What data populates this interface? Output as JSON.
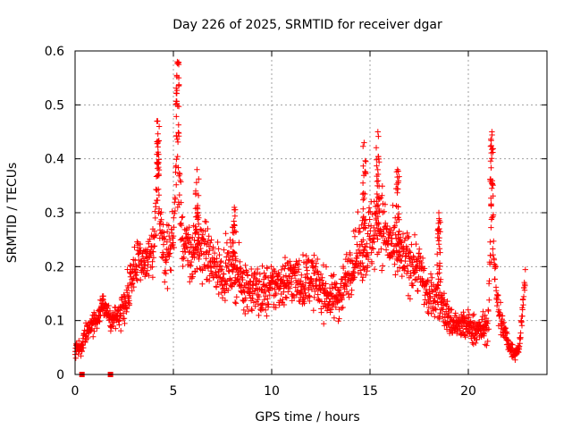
{
  "chart_data": {
    "type": "scatter",
    "title": "Day 226 of 2025, SRMTID for receiver dgar",
    "xlabel": "GPS time / hours",
    "ylabel": "SRMTID / TECUs",
    "xlim": [
      0,
      24
    ],
    "ylim": [
      0,
      0.6
    ],
    "xticks": [
      0,
      5,
      10,
      15,
      20
    ],
    "xtick_labels": [
      "0",
      "5",
      "10",
      "15",
      "20"
    ],
    "yticks": [
      0,
      0.1,
      0.2,
      0.3,
      0.4,
      0.5,
      0.6
    ],
    "ytick_labels": [
      "0",
      "0.1",
      "0.2",
      "0.3",
      "0.4",
      "0.5",
      "0.6"
    ],
    "grid": true,
    "marker": "plus",
    "series_color": "#ff0000",
    "outlier_markers": {
      "marker": "square",
      "x": [
        0.35,
        1.8
      ],
      "y": [
        0,
        0
      ]
    },
    "trend": {
      "x": [
        0.0,
        0.3,
        0.6,
        1.0,
        1.4,
        1.8,
        2.2,
        2.6,
        3.0,
        3.5,
        4.0,
        4.2,
        4.5,
        5.0,
        5.2,
        5.5,
        6.0,
        6.5,
        7.0,
        7.5,
        8.0,
        8.5,
        9.0,
        9.5,
        10.0,
        10.5,
        11.0,
        11.5,
        12.0,
        12.5,
        13.0,
        13.5,
        14.0,
        14.5,
        15.0,
        15.5,
        16.0,
        16.5,
        17.0,
        17.5,
        18.0,
        18.5,
        19.0,
        19.5,
        20.0,
        20.5,
        21.0,
        21.2,
        21.5,
        22.0,
        22.3,
        22.6,
        22.9
      ],
      "y": [
        0.05,
        0.05,
        0.08,
        0.1,
        0.13,
        0.1,
        0.11,
        0.14,
        0.2,
        0.21,
        0.22,
        0.36,
        0.22,
        0.25,
        0.43,
        0.24,
        0.22,
        0.24,
        0.2,
        0.19,
        0.2,
        0.17,
        0.16,
        0.15,
        0.16,
        0.17,
        0.18,
        0.17,
        0.18,
        0.16,
        0.14,
        0.15,
        0.2,
        0.23,
        0.25,
        0.29,
        0.24,
        0.22,
        0.21,
        0.2,
        0.14,
        0.15,
        0.1,
        0.09,
        0.09,
        0.08,
        0.09,
        0.3,
        0.12,
        0.06,
        0.04,
        0.05,
        0.19
      ],
      "spread": [
        0.015,
        0.015,
        0.02,
        0.025,
        0.025,
        0.02,
        0.03,
        0.04,
        0.05,
        0.05,
        0.05,
        0.08,
        0.05,
        0.06,
        0.12,
        0.06,
        0.06,
        0.05,
        0.06,
        0.05,
        0.05,
        0.05,
        0.05,
        0.05,
        0.05,
        0.05,
        0.05,
        0.05,
        0.05,
        0.05,
        0.04,
        0.05,
        0.05,
        0.06,
        0.08,
        0.08,
        0.06,
        0.05,
        0.06,
        0.05,
        0.04,
        0.05,
        0.03,
        0.03,
        0.03,
        0.03,
        0.03,
        0.1,
        0.04,
        0.02,
        0.015,
        0.015,
        0.02
      ]
    },
    "peaks": [
      {
        "x": 4.2,
        "y": 0.47
      },
      {
        "x": 5.2,
        "y": 0.58
      },
      {
        "x": 6.2,
        "y": 0.38
      },
      {
        "x": 8.1,
        "y": 0.31
      },
      {
        "x": 14.7,
        "y": 0.43
      },
      {
        "x": 15.4,
        "y": 0.45
      },
      {
        "x": 16.4,
        "y": 0.38
      },
      {
        "x": 18.5,
        "y": 0.3
      },
      {
        "x": 21.2,
        "y": 0.45
      }
    ]
  }
}
